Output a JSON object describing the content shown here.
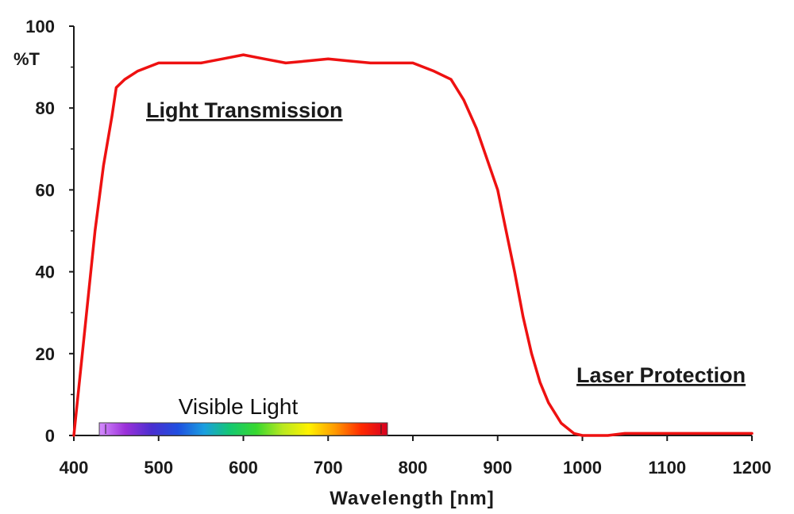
{
  "chart_data": {
    "type": "line",
    "xlabel": "Wavelength [nm]",
    "ylabel": "%T",
    "xlim": [
      400,
      1200
    ],
    "ylim": [
      0,
      100
    ],
    "x_ticks": [
      "400",
      "500",
      "600",
      "700",
      "800",
      "900",
      "1000",
      "1100",
      "1200"
    ],
    "y_ticks": [
      "0",
      "20",
      "40",
      "60",
      "80",
      "100"
    ],
    "grid": false,
    "series": [
      {
        "color": "#ee1111",
        "x": [
          400,
          410,
          425,
          435,
          445,
          450,
          460,
          475,
          500,
          525,
          550,
          575,
          600,
          625,
          650,
          675,
          700,
          725,
          750,
          775,
          800,
          825,
          845,
          860,
          875,
          890,
          900,
          910,
          920,
          930,
          940,
          950,
          960,
          975,
          990,
          1000,
          1010,
          1030,
          1050,
          1100,
          1150,
          1200
        ],
        "y": [
          0,
          20,
          50,
          66,
          78,
          85,
          87,
          89,
          91,
          91,
          91,
          92,
          93,
          92,
          91,
          91.5,
          92,
          91.5,
          91,
          91,
          91,
          89,
          87,
          82,
          75,
          66,
          60,
          50,
          40,
          29,
          20,
          13,
          8,
          3,
          0.5,
          0,
          0,
          0,
          0.5,
          0.5,
          0.5,
          0.5
        ]
      }
    ],
    "annotations": [
      {
        "text": "Light Transmission"
      },
      {
        "text": "Laser Protection"
      },
      {
        "text": "Visible Light"
      }
    ],
    "visible_band": {
      "range": [
        430,
        770
      ],
      "colors": [
        "#d58cff",
        "#9b30d9",
        "#4a2fd0",
        "#1f4fe0",
        "#1a9ee0",
        "#14c870",
        "#38d830",
        "#b8e820",
        "#fff200",
        "#ff9a00",
        "#ff2a00",
        "#d80020"
      ]
    }
  }
}
